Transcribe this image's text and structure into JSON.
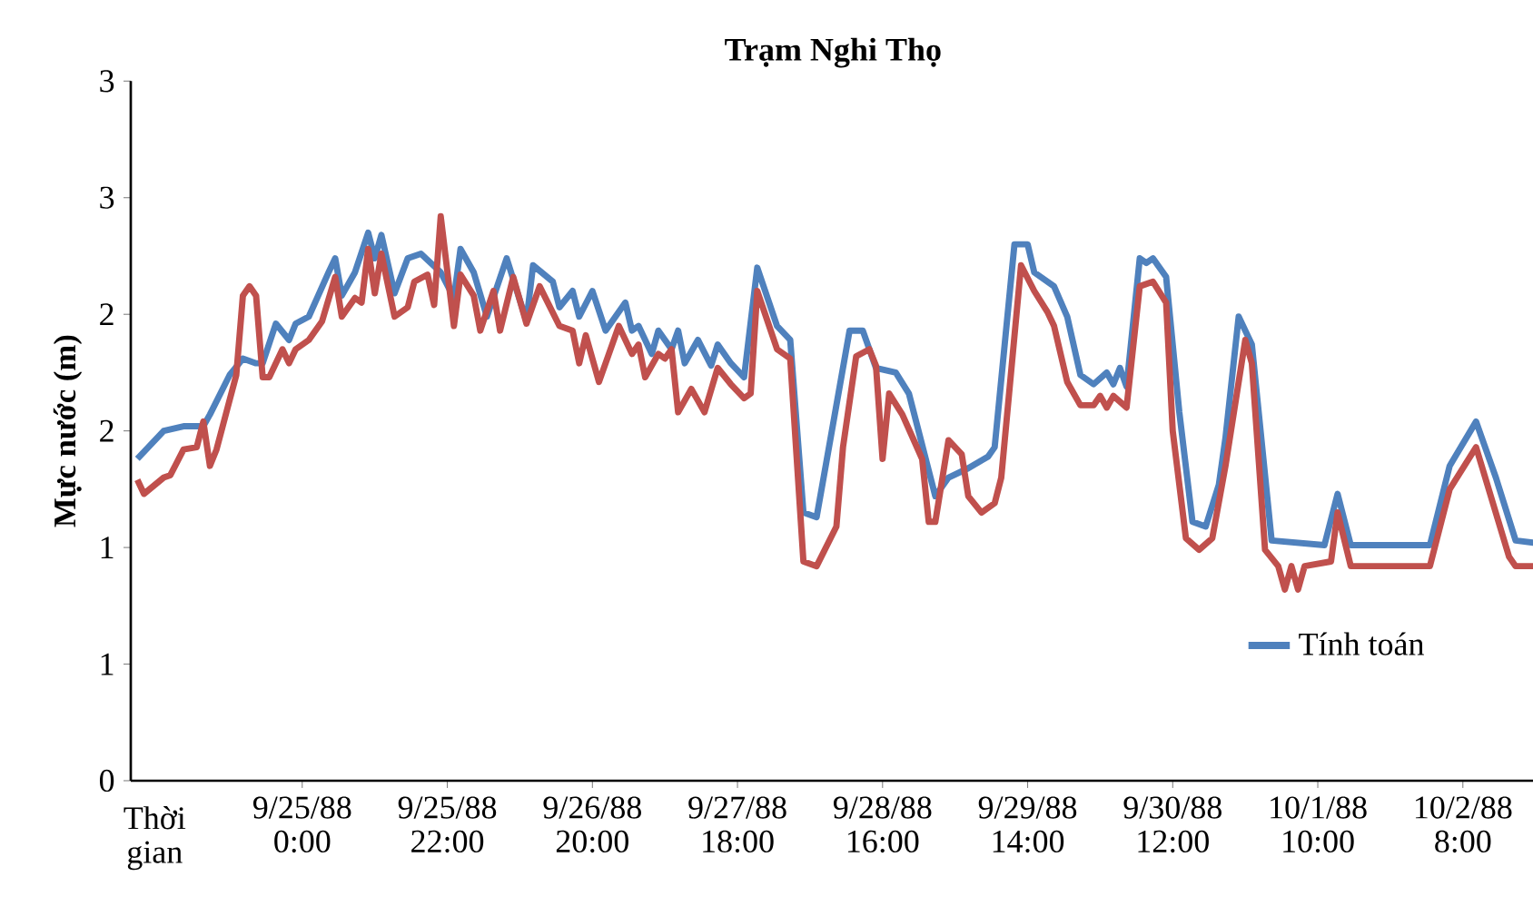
{
  "chart_data": {
    "type": "line",
    "title": "Trạm Nghi Thọ",
    "xlabel": "Thời gian",
    "ylabel": "Mực nước (m)",
    "xlim": [
      "1988-09-23T22:00",
      "1988-10-02T19:00"
    ],
    "ylim": [
      0,
      3
    ],
    "xticks": [
      {
        "value": "1988-09-25T00:00",
        "label": "9/25/88 0:00"
      },
      {
        "value": "1988-09-25T22:00",
        "label": "9/25/88 22:00"
      },
      {
        "value": "1988-09-26T20:00",
        "label": "9/26/88 20:00"
      },
      {
        "value": "1988-09-27T18:00",
        "label": "9/27/88 18:00"
      },
      {
        "value": "1988-09-28T16:00",
        "label": "9/28/88 16:00"
      },
      {
        "value": "1988-09-29T14:00",
        "label": "9/29/88 14:00"
      },
      {
        "value": "1988-09-30T12:00",
        "label": "9/30/88 12:00"
      },
      {
        "value": "1988-10-01T10:00",
        "label": "10/1/88 10:00"
      },
      {
        "value": "1988-10-02T08:00",
        "label": "10/2/88 8:00"
      }
    ],
    "yticks": [
      0,
      {
        "value": 0.5,
        "label": "1"
      },
      1,
      {
        "value": 1.5,
        "label": "2"
      },
      2,
      {
        "value": 2.5,
        "label": "3"
      },
      3
    ],
    "legend": "bottom right",
    "grid": false,
    "marker": "none",
    "line_style": "solid",
    "series": [
      {
        "name": "Tính toán",
        "color": "#4f81bd",
        "x": [
          "1988-09-23T23:00",
          "1988-09-24T03:00",
          "1988-09-24T06:00",
          "1988-09-24T09:00",
          "1988-09-24T10:00",
          "1988-09-24T13:00",
          "1988-09-24T15:00",
          "1988-09-24T17:00",
          "1988-09-24T18:00",
          "1988-09-24T20:00",
          "1988-09-24T22:00",
          "1988-09-24T23:00",
          "1988-09-25T01:00",
          "1988-09-25T04:00",
          "1988-09-25T05:00",
          "1988-09-25T06:00",
          "1988-09-25T08:00",
          "1988-09-25T10:00",
          "1988-09-25T11:00",
          "1988-09-25T12:00",
          "1988-09-25T14:00",
          "1988-09-25T16:00",
          "1988-09-25T18:00",
          "1988-09-25T21:00",
          "1988-09-25T23:00",
          "1988-09-26T00:00",
          "1988-09-26T02:00",
          "1988-09-26T04:00",
          "1988-09-26T07:00",
          "1988-09-26T10:00",
          "1988-09-26T11:00",
          "1988-09-26T14:00",
          "1988-09-26T15:00",
          "1988-09-26T17:00",
          "1988-09-26T18:00",
          "1988-09-26T20:00",
          "1988-09-26T22:00",
          "1988-09-27T01:00",
          "1988-09-27T02:00",
          "1988-09-27T03:00",
          "1988-09-27T05:00",
          "1988-09-27T06:00",
          "1988-09-27T08:00",
          "1988-09-27T09:00",
          "1988-09-27T10:00",
          "1988-09-27T12:00",
          "1988-09-27T14:00",
          "1988-09-27T15:00",
          "1988-09-27T17:00",
          "1988-09-27T19:00",
          "1988-09-27T21:00",
          "1988-09-28T00:00",
          "1988-09-28T02:00",
          "1988-09-28T04:00",
          "1988-09-28T06:00",
          "1988-09-28T09:00",
          "1988-09-28T11:00",
          "1988-09-28T13:00",
          "1988-09-28T15:00",
          "1988-09-28T18:00",
          "1988-09-28T20:00",
          "1988-09-29T00:00",
          "1988-09-29T02:00",
          "1988-09-29T05:00",
          "1988-09-29T08:00",
          "1988-09-29T09:00",
          "1988-09-29T12:00",
          "1988-09-29T14:00",
          "1988-09-29T15:00",
          "1988-09-29T18:00",
          "1988-09-29T20:00",
          "1988-09-29T22:00",
          "1988-09-30T00:00",
          "1988-09-30T02:00",
          "1988-09-30T03:00",
          "1988-09-30T04:00",
          "1988-09-30T05:00",
          "1988-09-30T07:00",
          "1988-09-30T08:00",
          "1988-09-30T09:00",
          "1988-09-30T11:00",
          "1988-09-30T13:00",
          "1988-09-30T15:00",
          "1988-09-30T17:00",
          "1988-09-30T19:00",
          "1988-09-30T20:00",
          "1988-09-30T22:00",
          "1988-10-01T00:00",
          "1988-10-01T03:00",
          "1988-10-01T11:00",
          "1988-10-01T13:00",
          "1988-10-01T15:00",
          "1988-10-02T03:00",
          "1988-10-02T06:00",
          "1988-10-02T10:00",
          "1988-10-02T13:00",
          "1988-10-02T16:00",
          "1988-10-02T19:00"
        ],
        "values": [
          1.38,
          1.5,
          1.52,
          1.52,
          1.57,
          1.74,
          1.81,
          1.79,
          1.79,
          1.96,
          1.89,
          1.96,
          1.99,
          2.18,
          2.24,
          2.08,
          2.18,
          2.35,
          2.24,
          2.34,
          2.09,
          2.24,
          2.26,
          2.18,
          2.07,
          2.28,
          2.18,
          1.99,
          2.24,
          1.97,
          2.21,
          2.14,
          2.03,
          2.1,
          1.99,
          2.1,
          1.93,
          2.05,
          1.93,
          1.95,
          1.83,
          1.93,
          1.85,
          1.93,
          1.79,
          1.89,
          1.78,
          1.87,
          1.79,
          1.73,
          2.2,
          1.95,
          1.89,
          1.15,
          1.13,
          1.61,
          1.93,
          1.93,
          1.77,
          1.75,
          1.66,
          1.22,
          1.3,
          1.34,
          1.39,
          1.43,
          2.3,
          2.3,
          2.18,
          2.12,
          1.99,
          1.74,
          1.7,
          1.75,
          1.7,
          1.77,
          1.69,
          2.24,
          2.22,
          2.24,
          2.16,
          1.58,
          1.11,
          1.09,
          1.27,
          1.47,
          1.99,
          1.87,
          1.03,
          1.01,
          1.23,
          1.01,
          1.01,
          1.35,
          1.54,
          1.3,
          1.03,
          1.02
        ]
      },
      {
        "color": "#c0504d",
        "x": [
          "1988-09-23T23:00",
          "1988-09-24T00:00",
          "1988-09-24T03:00",
          "1988-09-24T04:00",
          "1988-09-24T06:00",
          "1988-09-24T08:00",
          "1988-09-24T09:00",
          "1988-09-24T10:00",
          "1988-09-24T11:00",
          "1988-09-24T14:00",
          "1988-09-24T15:00",
          "1988-09-24T16:00",
          "1988-09-24T17:00",
          "1988-09-24T18:00",
          "1988-09-24T19:00",
          "1988-09-24T21:00",
          "1988-09-24T22:00",
          "1988-09-24T23:00",
          "1988-09-25T01:00",
          "1988-09-25T03:00",
          "1988-09-25T05:00",
          "1988-09-25T06:00",
          "1988-09-25T08:00",
          "1988-09-25T09:00",
          "1988-09-25T10:00",
          "1988-09-25T11:00",
          "1988-09-25T12:00",
          "1988-09-25T14:00",
          "1988-09-25T16:00",
          "1988-09-25T17:00",
          "1988-09-25T19:00",
          "1988-09-25T20:00",
          "1988-09-25T21:00",
          "1988-09-25T23:00",
          "1988-09-26T00:00",
          "1988-09-26T02:00",
          "1988-09-26T03:00",
          "1988-09-26T05:00",
          "1988-09-26T06:00",
          "1988-09-26T08:00",
          "1988-09-26T10:00",
          "1988-09-26T12:00",
          "1988-09-26T15:00",
          "1988-09-26T17:00",
          "1988-09-26T18:00",
          "1988-09-26T19:00",
          "1988-09-26T21:00",
          "1988-09-27T00:00",
          "1988-09-27T02:00",
          "1988-09-27T03:00",
          "1988-09-27T04:00",
          "1988-09-27T06:00",
          "1988-09-27T07:00",
          "1988-09-27T08:00",
          "1988-09-27T09:00",
          "1988-09-27T11:00",
          "1988-09-27T13:00",
          "1988-09-27T15:00",
          "1988-09-27T17:00",
          "1988-09-27T19:00",
          "1988-09-27T20:00",
          "1988-09-27T21:00",
          "1988-09-28T00:00",
          "1988-09-28T02:00",
          "1988-09-28T04:00",
          "1988-09-28T06:00",
          "1988-09-28T09:00",
          "1988-09-28T10:00",
          "1988-09-28T12:00",
          "1988-09-28T14:00",
          "1988-09-28T15:00",
          "1988-09-28T16:00",
          "1988-09-28T17:00",
          "1988-09-28T19:00",
          "1988-09-28T22:00",
          "1988-09-28T23:00",
          "1988-09-29T00:00",
          "1988-09-29T02:00",
          "1988-09-29T04:00",
          "1988-09-29T05:00",
          "1988-09-29T07:00",
          "1988-09-29T09:00",
          "1988-09-29T10:00",
          "1988-09-29T13:00",
          "1988-09-29T15:00",
          "1988-09-29T17:00",
          "1988-09-29T18:00",
          "1988-09-29T20:00",
          "1988-09-29T22:00",
          "1988-09-30T00:00",
          "1988-09-30T01:00",
          "1988-09-30T02:00",
          "1988-09-30T03:00",
          "1988-09-30T05:00",
          "1988-09-30T07:00",
          "1988-09-30T09:00",
          "1988-09-30T11:00",
          "1988-09-30T12:00",
          "1988-09-30T14:00",
          "1988-09-30T16:00",
          "1988-09-30T18:00",
          "1988-09-30T20:00",
          "1988-09-30T23:00",
          "1988-10-01T00:00",
          "1988-10-01T02:00",
          "1988-10-01T04:00",
          "1988-10-01T05:00",
          "1988-10-01T06:00",
          "1988-10-01T07:00",
          "1988-10-01T08:00",
          "1988-10-01T12:00",
          "1988-10-01T13:00",
          "1988-10-01T15:00",
          "1988-10-02T03:00",
          "1988-10-02T06:00",
          "1988-10-02T10:00",
          "1988-10-02T15:00",
          "1988-10-02T16:00",
          "1988-10-02T19:00"
        ],
        "values": [
          1.29,
          1.23,
          1.3,
          1.31,
          1.42,
          1.43,
          1.54,
          1.35,
          1.42,
          1.74,
          2.08,
          2.12,
          2.08,
          1.73,
          1.73,
          1.85,
          1.79,
          1.85,
          1.89,
          1.97,
          2.16,
          1.99,
          2.07,
          2.05,
          2.28,
          2.09,
          2.26,
          1.99,
          2.03,
          2.14,
          2.17,
          2.04,
          2.42,
          1.95,
          2.17,
          2.08,
          1.93,
          2.1,
          1.93,
          2.16,
          1.96,
          2.12,
          1.95,
          1.93,
          1.79,
          1.91,
          1.71,
          1.95,
          1.83,
          1.87,
          1.73,
          1.83,
          1.81,
          1.85,
          1.58,
          1.68,
          1.58,
          1.77,
          1.7,
          1.64,
          1.66,
          2.1,
          1.85,
          1.81,
          0.94,
          0.92,
          1.09,
          1.43,
          1.82,
          1.85,
          1.78,
          1.38,
          1.66,
          1.57,
          1.38,
          1.11,
          1.11,
          1.46,
          1.4,
          1.22,
          1.15,
          1.19,
          1.3,
          2.21,
          2.1,
          2.01,
          1.95,
          1.71,
          1.61,
          1.61,
          1.65,
          1.6,
          1.65,
          1.6,
          2.12,
          2.14,
          2.05,
          1.5,
          1.04,
          0.99,
          1.04,
          1.35,
          1.89,
          1.79,
          0.99,
          0.92,
          0.82,
          0.92,
          0.82,
          0.92,
          0.94,
          1.15,
          0.92,
          0.92,
          1.25,
          1.43,
          0.96,
          0.92,
          0.92
        ]
      }
    ]
  }
}
